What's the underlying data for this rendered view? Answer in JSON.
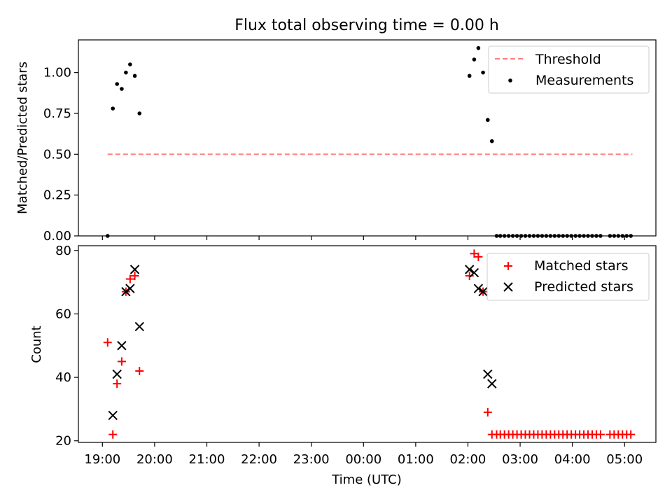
{
  "figure": {
    "title": "Flux total observing time = 0.00 h"
  },
  "chart_data": [
    {
      "type": "scatter",
      "panel": "top",
      "title": "Flux total observing time = 0.00 h",
      "xlabel": "",
      "ylabel": "Matched/Predicted stars",
      "x_unit": "hours since 19:00 UTC",
      "xlim": [
        -0.46,
        10.6
      ],
      "ylim": [
        0.0,
        1.2
      ],
      "yticks": [
        0.0,
        0.25,
        0.5,
        0.75,
        1.0
      ],
      "ytick_labels": [
        "0.00",
        "0.25",
        "0.50",
        "0.75",
        "1.00"
      ],
      "xticks": [
        0,
        1,
        2,
        3,
        4,
        5,
        6,
        7,
        8,
        9,
        10
      ],
      "legend_placement": "upper right",
      "grid": false,
      "threshold": {
        "name": "Threshold",
        "value": 0.5,
        "x_range": [
          0.1,
          10.15
        ],
        "color": "#ff7f7f",
        "style": "dashed"
      },
      "series": [
        {
          "name": "Measurements",
          "color": "#000000",
          "marker": "dot",
          "points": [
            [
              0.1,
              0.0
            ],
            [
              0.2,
              0.78
            ],
            [
              0.28,
              0.93
            ],
            [
              0.37,
              0.9
            ],
            [
              0.45,
              1.0
            ],
            [
              0.53,
              1.05
            ],
            [
              0.62,
              0.98
            ],
            [
              0.71,
              0.75
            ],
            [
              7.03,
              0.98
            ],
            [
              7.12,
              1.08
            ],
            [
              7.2,
              1.15
            ],
            [
              7.29,
              1.0
            ],
            [
              7.38,
              0.71
            ],
            [
              7.46,
              0.58
            ],
            [
              7.55,
              0.0
            ],
            [
              7.62,
              0.0
            ],
            [
              7.7,
              0.0
            ],
            [
              7.78,
              0.0
            ],
            [
              7.86,
              0.0
            ],
            [
              7.94,
              0.0
            ],
            [
              8.02,
              0.0
            ],
            [
              8.1,
              0.0
            ],
            [
              8.18,
              0.0
            ],
            [
              8.26,
              0.0
            ],
            [
              8.34,
              0.0
            ],
            [
              8.42,
              0.0
            ],
            [
              8.5,
              0.0
            ],
            [
              8.58,
              0.0
            ],
            [
              8.66,
              0.0
            ],
            [
              8.74,
              0.0
            ],
            [
              8.82,
              0.0
            ],
            [
              8.9,
              0.0
            ],
            [
              8.98,
              0.0
            ],
            [
              9.06,
              0.0
            ],
            [
              9.14,
              0.0
            ],
            [
              9.22,
              0.0
            ],
            [
              9.3,
              0.0
            ],
            [
              9.38,
              0.0
            ],
            [
              9.46,
              0.0
            ],
            [
              9.54,
              0.0
            ],
            [
              9.72,
              0.0
            ],
            [
              9.8,
              0.0
            ],
            [
              9.88,
              0.0
            ],
            [
              9.96,
              0.0
            ],
            [
              10.04,
              0.0
            ],
            [
              10.12,
              0.0
            ]
          ]
        }
      ]
    },
    {
      "type": "scatter",
      "panel": "bottom",
      "xlabel": "Time (UTC)",
      "ylabel": "Count",
      "x_unit": "hours since 19:00 UTC",
      "xlim": [
        -0.46,
        10.6
      ],
      "ylim": [
        19.5,
        81.5
      ],
      "yticks": [
        20,
        40,
        60,
        80
      ],
      "xticks": [
        0,
        1,
        2,
        3,
        4,
        5,
        6,
        7,
        8,
        9,
        10
      ],
      "xtick_labels": [
        "19:00",
        "20:00",
        "21:00",
        "22:00",
        "23:00",
        "00:00",
        "01:00",
        "02:00",
        "03:00",
        "04:00",
        "05:00"
      ],
      "legend_placement": "upper right",
      "grid": false,
      "series": [
        {
          "name": "Matched stars",
          "color": "#ff0000",
          "marker": "plus",
          "points": [
            [
              0.1,
              51
            ],
            [
              0.2,
              22
            ],
            [
              0.28,
              38
            ],
            [
              0.37,
              45
            ],
            [
              0.45,
              67
            ],
            [
              0.53,
              71
            ],
            [
              0.62,
              72
            ],
            [
              0.71,
              42
            ],
            [
              7.03,
              72
            ],
            [
              7.12,
              79
            ],
            [
              7.2,
              78
            ],
            [
              7.29,
              67
            ],
            [
              7.38,
              29
            ],
            [
              7.46,
              22
            ],
            [
              7.55,
              22
            ],
            [
              7.62,
              22
            ],
            [
              7.7,
              22
            ],
            [
              7.78,
              22
            ],
            [
              7.86,
              22
            ],
            [
              7.94,
              22
            ],
            [
              8.02,
              22
            ],
            [
              8.1,
              22
            ],
            [
              8.18,
              22
            ],
            [
              8.26,
              22
            ],
            [
              8.34,
              22
            ],
            [
              8.42,
              22
            ],
            [
              8.5,
              22
            ],
            [
              8.58,
              22
            ],
            [
              8.66,
              22
            ],
            [
              8.74,
              22
            ],
            [
              8.82,
              22
            ],
            [
              8.9,
              22
            ],
            [
              8.98,
              22
            ],
            [
              9.06,
              22
            ],
            [
              9.14,
              22
            ],
            [
              9.22,
              22
            ],
            [
              9.3,
              22
            ],
            [
              9.38,
              22
            ],
            [
              9.46,
              22
            ],
            [
              9.54,
              22
            ],
            [
              9.72,
              22
            ],
            [
              9.8,
              22
            ],
            [
              9.88,
              22
            ],
            [
              9.96,
              22
            ],
            [
              10.04,
              22
            ],
            [
              10.12,
              22
            ]
          ]
        },
        {
          "name": "Predicted stars",
          "color": "#000000",
          "marker": "x",
          "points": [
            [
              0.2,
              28
            ],
            [
              0.28,
              41
            ],
            [
              0.37,
              50
            ],
            [
              0.45,
              67
            ],
            [
              0.53,
              68
            ],
            [
              0.62,
              74
            ],
            [
              0.71,
              56
            ],
            [
              7.03,
              74
            ],
            [
              7.12,
              73
            ],
            [
              7.2,
              68
            ],
            [
              7.29,
              67
            ],
            [
              7.38,
              41
            ],
            [
              7.46,
              38
            ]
          ]
        }
      ]
    }
  ]
}
